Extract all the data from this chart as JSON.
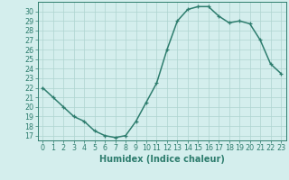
{
  "x": [
    0,
    1,
    2,
    3,
    4,
    5,
    6,
    7,
    8,
    9,
    10,
    11,
    12,
    13,
    14,
    15,
    16,
    17,
    18,
    19,
    20,
    21,
    22,
    23
  ],
  "y": [
    22,
    21,
    20,
    19,
    18.5,
    17.5,
    17,
    16.8,
    17,
    18.5,
    20.5,
    22.5,
    26,
    29,
    30.2,
    30.5,
    30.5,
    29.5,
    28.8,
    29,
    28.7,
    27,
    24.5,
    23.5
  ],
  "line_color": "#2e7d6e",
  "marker_color": "#2e7d6e",
  "background_color": "#d4eeed",
  "grid_color": "#aed4d0",
  "tick_color": "#2e7d6e",
  "xlabel": "Humidex (Indice chaleur)",
  "ylim": [
    16.5,
    31.0
  ],
  "xlim": [
    -0.5,
    23.5
  ],
  "yticks": [
    17,
    18,
    19,
    20,
    21,
    22,
    23,
    24,
    25,
    26,
    27,
    28,
    29,
    30
  ],
  "xticks": [
    0,
    1,
    2,
    3,
    4,
    5,
    6,
    7,
    8,
    9,
    10,
    11,
    12,
    13,
    14,
    15,
    16,
    17,
    18,
    19,
    20,
    21,
    22,
    23
  ],
  "xlabel_fontsize": 7,
  "tick_fontsize": 5.8,
  "linewidth": 1.1,
  "markersize": 3.0,
  "marker": "+"
}
